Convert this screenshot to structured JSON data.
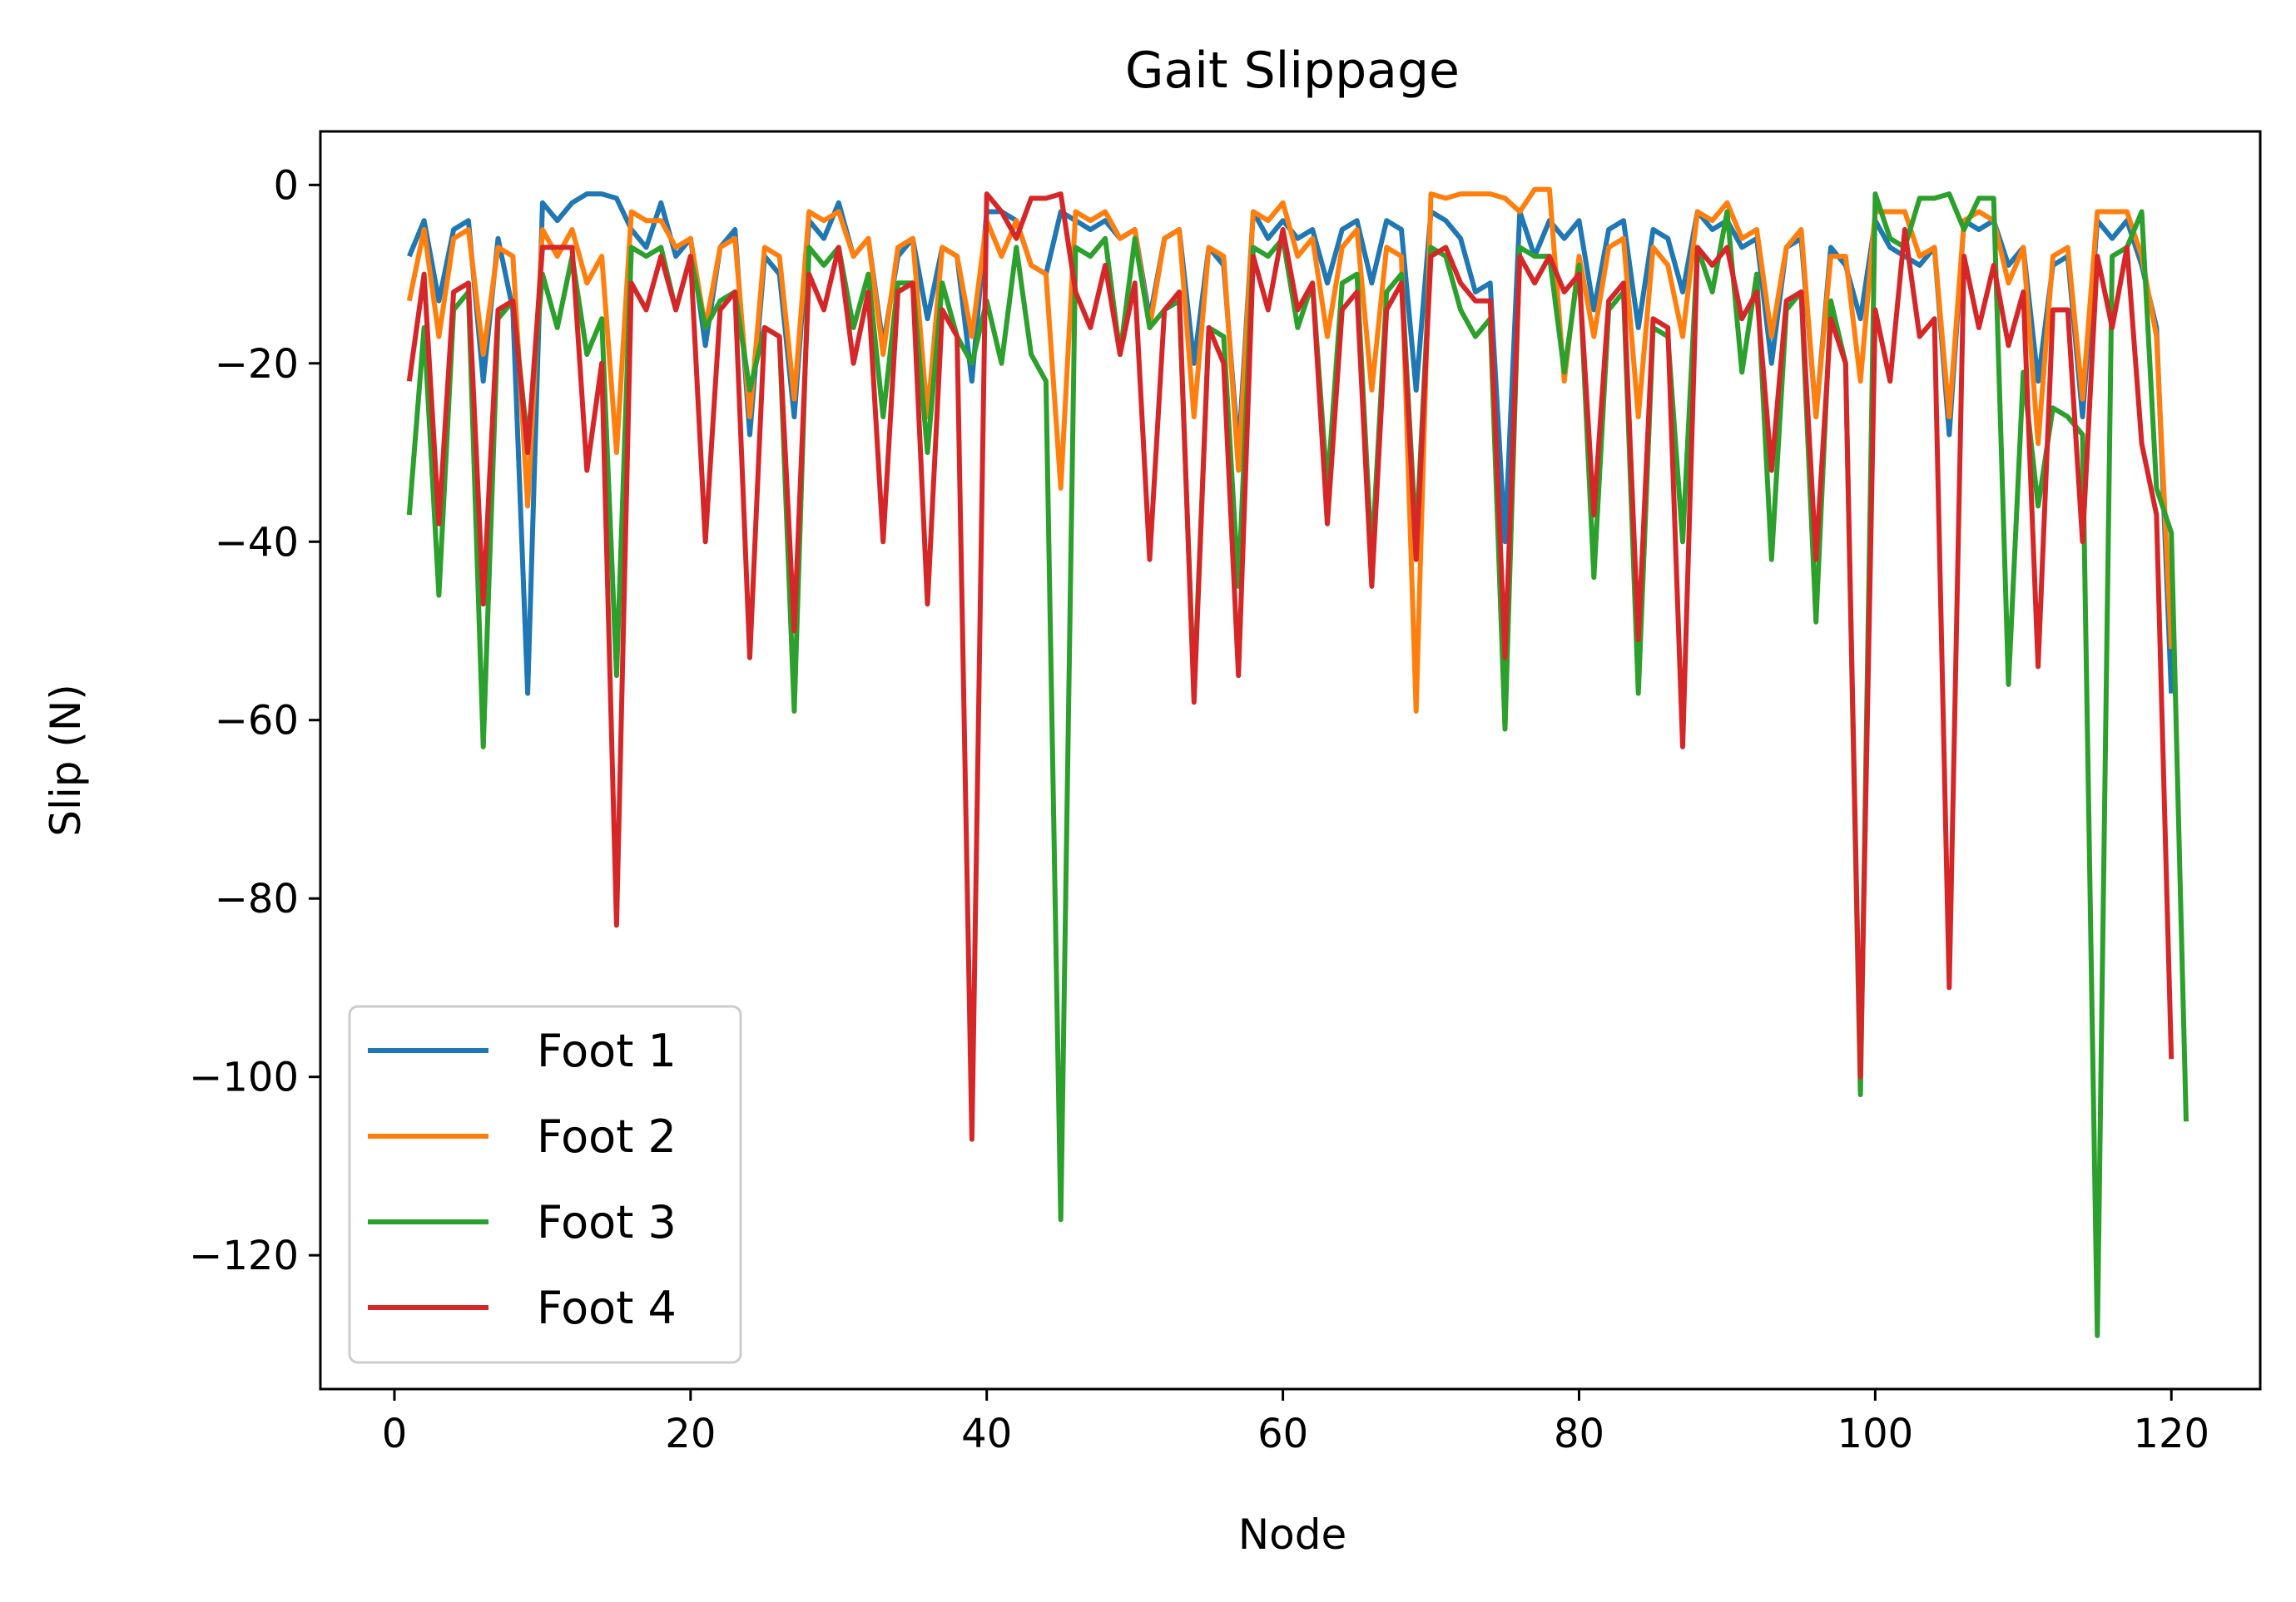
{
  "chart_data": {
    "type": "line",
    "title": "Gait Slippage",
    "xlabel": "Node",
    "ylabel": "Slip (N)",
    "xlim": [
      -5,
      126
    ],
    "ylim": [
      -135,
      6
    ],
    "xticks": [
      0,
      20,
      40,
      60,
      80,
      100,
      120
    ],
    "yticks": [
      0,
      -20,
      -40,
      -60,
      -80,
      -100,
      -120
    ],
    "xtick_labels": [
      "0",
      "20",
      "40",
      "60",
      "80",
      "100",
      "120"
    ],
    "ytick_labels": [
      "0",
      "−20",
      "−40",
      "−60",
      "−80",
      "−100",
      "−120"
    ],
    "grid": false,
    "legend_position": "lower-left",
    "x_start": 1,
    "series": [
      {
        "name": "Foot 1",
        "color": "#1f77b4",
        "values": [
          -8,
          -4,
          -13,
          -5,
          -4,
          -22,
          -6,
          -14,
          -57,
          -2,
          -4,
          -2,
          -1,
          -1,
          -1.5,
          -5,
          -7,
          -2,
          -8,
          -6,
          -18,
          -7,
          -5,
          -28,
          -8,
          -10,
          -26,
          -4,
          -6,
          -2,
          -8,
          -6,
          -18,
          -8,
          -6,
          -15,
          -7,
          -8,
          -22,
          -3,
          -3,
          -4,
          -9,
          -10,
          -3,
          -4,
          -5,
          -4,
          -6,
          -5,
          -15,
          -6,
          -5,
          -20,
          -7,
          -9,
          -30,
          -3,
          -6,
          -4,
          -6,
          -5,
          -11,
          -5,
          -4,
          -11,
          -4,
          -5,
          -23,
          -3,
          -4,
          -6,
          -12,
          -11,
          -40,
          -3,
          -8,
          -4,
          -6,
          -4,
          -14,
          -5,
          -4,
          -16,
          -5,
          -6,
          -12,
          -3,
          -5,
          -4,
          -7,
          -6,
          -20,
          -7,
          -6,
          -26,
          -7,
          -9,
          -15,
          -4,
          -7,
          -8,
          -9,
          -7,
          -28,
          -4,
          -5,
          -4,
          -9,
          -7,
          -22,
          -9,
          -8,
          -26,
          -4,
          -6,
          -4,
          -9,
          -16,
          -57
        ]
      },
      {
        "name": "Foot 2",
        "color": "#ff7f0e",
        "values": [
          -13,
          -5,
          -17,
          -6,
          -5,
          -19,
          -7,
          -8,
          -36,
          -5,
          -8,
          -5,
          -11,
          -8,
          -30,
          -3,
          -4,
          -4,
          -7,
          -6,
          -16,
          -7,
          -6,
          -26,
          -7,
          -8,
          -24,
          -3,
          -4,
          -3,
          -8,
          -6,
          -19,
          -7,
          -6,
          -26,
          -7,
          -8,
          -17,
          -4,
          -8,
          -4,
          -9,
          -10,
          -34,
          -3,
          -4,
          -3,
          -6,
          -5,
          -16,
          -6,
          -5,
          -26,
          -7,
          -8,
          -32,
          -3,
          -4,
          -2,
          -8,
          -6,
          -17,
          -7,
          -5,
          -23,
          -7,
          -8,
          -59,
          -1,
          -1.5,
          -1,
          -1,
          -1,
          -1.5,
          -3,
          -0.5,
          -0.5,
          -22,
          -8,
          -17,
          -7,
          -6,
          -26,
          -7,
          -9,
          -17,
          -3,
          -4,
          -2,
          -6,
          -5,
          -17,
          -7,
          -5,
          -26,
          -8,
          -8,
          -22,
          -3,
          -3,
          -3,
          -8,
          -7,
          -26,
          -4,
          -3,
          -4,
          -11,
          -7,
          -29,
          -8,
          -7,
          -24,
          -3,
          -3,
          -3,
          -8,
          -17,
          -52
        ]
      },
      {
        "name": "Foot 3",
        "color": "#2ca02c",
        "values": [
          -37,
          -16,
          -46,
          -14,
          -12,
          -63,
          -15,
          -13,
          -29,
          -10,
          -16,
          -8,
          -19,
          -15,
          -55,
          -7,
          -8,
          -7,
          -14,
          -8,
          -16,
          -13,
          -12,
          -23,
          -16,
          -17,
          -59,
          -7,
          -9,
          -7,
          -16,
          -10,
          -26,
          -11,
          -11,
          -30,
          -11,
          -17,
          -20,
          -13,
          -20,
          -7,
          -19,
          -22,
          -116,
          -7,
          -8,
          -6,
          -19,
          -6,
          -16,
          -14,
          -13,
          -57,
          -16,
          -17,
          -45,
          -7,
          -8,
          -6,
          -16,
          -11,
          -34,
          -11,
          -10,
          -42,
          -12,
          -10,
          -40,
          -7,
          -8,
          -14,
          -17,
          -15,
          -61,
          -7,
          -8,
          -8,
          -21,
          -9,
          -44,
          -14,
          -12,
          -57,
          -16,
          -17,
          -40,
          -7,
          -12,
          -3,
          -21,
          -10,
          -42,
          -14,
          -12,
          -49,
          -13,
          -20,
          -102,
          -1,
          -6,
          -7,
          -1.5,
          -1.5,
          -1,
          -5,
          -1.5,
          -1.5,
          -56,
          -21,
          -36,
          -25,
          -26,
          -28,
          -129,
          -8,
          -7,
          -3,
          -34,
          -39,
          -105
        ]
      },
      {
        "name": "Foot 4",
        "color": "#d62728",
        "values": [
          -22,
          -10,
          -38,
          -12,
          -11,
          -47,
          -14,
          -13,
          -30,
          -7,
          -7,
          -7,
          -32,
          -20,
          -83,
          -11,
          -14,
          -8,
          -14,
          -8,
          -40,
          -14,
          -12,
          -53,
          -16,
          -17,
          -50,
          -10,
          -14,
          -7,
          -20,
          -12,
          -40,
          -12,
          -11,
          -47,
          -14,
          -17,
          -107,
          -1,
          -3,
          -6,
          -1.5,
          -1.5,
          -1,
          -12,
          -16,
          -9,
          -19,
          -11,
          -42,
          -14,
          -12,
          -58,
          -16,
          -20,
          -55,
          -8,
          -14,
          -5,
          -14,
          -11,
          -38,
          -14,
          -12,
          -45,
          -14,
          -11,
          -42,
          -8,
          -7,
          -11,
          -13,
          -13,
          -53,
          -8,
          -11,
          -8,
          -12,
          -10,
          -37,
          -13,
          -11,
          -51,
          -15,
          -16,
          -63,
          -7,
          -9,
          -7,
          -15,
          -12,
          -32,
          -13,
          -12,
          -42,
          -15,
          -20,
          -100,
          -14,
          -22,
          -5,
          -17,
          -15,
          -90,
          -8,
          -16,
          -9,
          -18,
          -12,
          -54,
          -14,
          -14,
          -40,
          -8,
          -16,
          -7,
          -29,
          -37,
          -98
        ]
      }
    ]
  }
}
